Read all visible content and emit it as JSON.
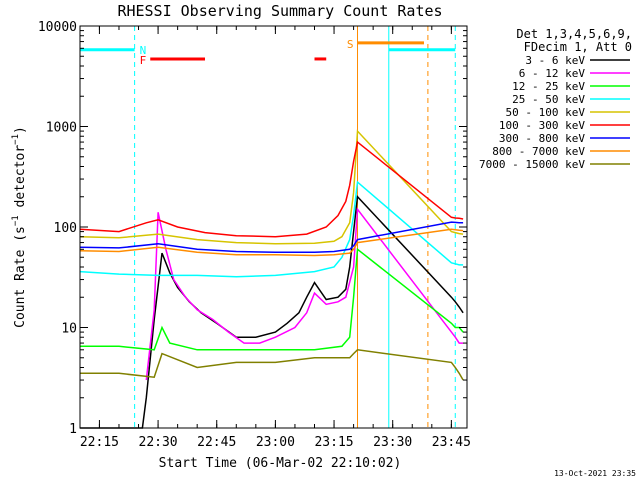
{
  "chart_data": {
    "type": "line",
    "title": "RHESSI Observing Summary Count Rates",
    "xlabel": "Start Time (06-Mar-02 22:10:02)",
    "ylabel": "Count Rate (s⁻¹ detector⁻¹)",
    "ylabel_parts": [
      "Count Rate (s",
      "−1",
      " detector",
      "−1",
      ")"
    ],
    "y_scale": "log",
    "ylim": [
      1,
      10000
    ],
    "y_ticks": [
      {
        "value": 1,
        "label": "1"
      },
      {
        "value": 10,
        "label": "10"
      },
      {
        "value": 100,
        "label": "100"
      },
      {
        "value": 1000,
        "label": "1000"
      },
      {
        "value": 10000,
        "label": "10000"
      }
    ],
    "xlim": [
      "22:10:02",
      "23:49:00"
    ],
    "x_ticks": [
      "22:15",
      "22:30",
      "22:45",
      "23:00",
      "23:15",
      "23:30",
      "23:45"
    ],
    "legend_placement": "right",
    "legend_header": [
      "Det 1,3,4,5,6,9,",
      "FDecim 1, Att 0"
    ],
    "series": [
      {
        "name": "3 - 6 keV",
        "color": "#000000",
        "x": [
          "22:10",
          "22:25",
          "22:26",
          "22:27",
          "22:29",
          "22:31",
          "22:33",
          "22:35",
          "22:38",
          "22:41",
          "22:45",
          "22:50",
          "22:55",
          "23:00",
          "23:03",
          "23:06",
          "23:08",
          "23:10",
          "23:13",
          "23:16",
          "23:18",
          "23:19",
          "23:20",
          "23:21",
          "23:45",
          "23:46",
          "23:47",
          "23:48"
        ],
        "values": [
          1,
          1,
          1,
          2,
          12,
          55,
          35,
          25,
          18,
          14,
          11,
          8,
          8,
          9,
          11,
          14,
          20,
          28,
          19,
          20,
          24,
          40,
          90,
          200,
          20,
          18,
          16,
          14
        ]
      },
      {
        "name": "6 - 12 keV",
        "color": "#ff00ff",
        "x": [
          "22:27",
          "22:29",
          "22:30",
          "22:32",
          "22:34",
          "22:37",
          "22:40",
          "22:44",
          "22:48",
          "22:52",
          "22:56",
          "23:00",
          "23:05",
          "23:08",
          "23:10",
          "23:13",
          "23:16",
          "23:18",
          "23:20",
          "23:21",
          "23:45",
          "23:46",
          "23:47",
          "23:48"
        ],
        "values": [
          3,
          15,
          140,
          60,
          30,
          20,
          15,
          12,
          9,
          7,
          7,
          8,
          10,
          14,
          22,
          17,
          18,
          20,
          40,
          150,
          9,
          8,
          7,
          7
        ]
      },
      {
        "name": "12 - 25 keV",
        "color": "#00ff00",
        "x": [
          "22:10",
          "22:20",
          "22:29",
          "22:31",
          "22:33",
          "22:40",
          "22:50",
          "23:00",
          "23:10",
          "23:17",
          "23:19",
          "23:20",
          "23:21",
          "23:45",
          "23:46",
          "23:47",
          "23:48"
        ],
        "values": [
          6.5,
          6.5,
          6,
          10,
          7,
          6,
          6,
          6,
          6,
          6.5,
          8,
          20,
          60,
          11,
          10,
          10,
          9
        ]
      },
      {
        "name": "25 - 50 keV",
        "color": "#00ffff",
        "x": [
          "22:10",
          "22:20",
          "22:30",
          "22:40",
          "22:50",
          "23:00",
          "23:10",
          "23:15",
          "23:17",
          "23:19",
          "23:20",
          "23:21",
          "23:45",
          "23:46",
          "23:47",
          "23:48"
        ],
        "values": [
          36,
          34,
          33,
          33,
          32,
          33,
          36,
          40,
          50,
          75,
          130,
          280,
          44,
          43,
          42,
          42
        ]
      },
      {
        "name": "50 - 100 keV",
        "color": "#d6c400",
        "x": [
          "22:10",
          "22:20",
          "22:30",
          "22:40",
          "22:50",
          "23:00",
          "23:10",
          "23:15",
          "23:17",
          "23:19",
          "23:20",
          "23:21",
          "23:45",
          "23:46",
          "23:47",
          "23:48"
        ],
        "values": [
          80,
          78,
          85,
          75,
          70,
          68,
          69,
          72,
          80,
          110,
          220,
          900,
          90,
          88,
          86,
          85
        ]
      },
      {
        "name": "100 - 300 keV",
        "color": "#ff0000",
        "x": [
          "22:10",
          "22:20",
          "22:27",
          "22:30",
          "22:35",
          "22:42",
          "22:50",
          "23:00",
          "23:08",
          "23:13",
          "23:16",
          "23:18",
          "23:19",
          "23:20",
          "23:21",
          "23:45",
          "23:46",
          "23:47",
          "23:48"
        ],
        "values": [
          95,
          90,
          110,
          118,
          100,
          88,
          82,
          80,
          85,
          100,
          130,
          180,
          260,
          450,
          700,
          125,
          123,
          122,
          120
        ]
      },
      {
        "name": "300 - 800 keV",
        "color": "#0000ff",
        "x": [
          "22:10",
          "22:20",
          "22:30",
          "22:40",
          "22:50",
          "23:00",
          "23:10",
          "23:15",
          "23:19",
          "23:20",
          "23:21",
          "23:45",
          "23:46",
          "23:47",
          "23:48"
        ],
        "values": [
          63,
          62,
          68,
          60,
          57,
          56,
          56,
          57,
          60,
          65,
          75,
          112,
          111,
          110,
          110
        ]
      },
      {
        "name": "800 - 7000 keV",
        "color": "#ff8c00",
        "x": [
          "22:10",
          "22:20",
          "22:30",
          "22:40",
          "22:50",
          "23:00",
          "23:10",
          "23:15",
          "23:19",
          "23:20",
          "23:21",
          "23:45",
          "23:46",
          "23:47",
          "23:48"
        ],
        "values": [
          58,
          57,
          63,
          56,
          53,
          53,
          52,
          53,
          55,
          60,
          70,
          95,
          94,
          93,
          92
        ]
      },
      {
        "name": "7000 - 15000 keV",
        "color": "#808000",
        "x": [
          "22:10",
          "22:20",
          "22:29",
          "22:31",
          "22:40",
          "22:50",
          "23:00",
          "23:10",
          "23:19",
          "23:20",
          "23:21",
          "23:45",
          "23:46",
          "23:47",
          "23:48"
        ],
        "values": [
          3.5,
          3.5,
          3.2,
          5.5,
          4,
          4.5,
          4.5,
          5,
          5,
          5.5,
          6,
          4.5,
          4,
          3.5,
          3
        ]
      }
    ],
    "annotations": [
      {
        "label": "N",
        "color": "#00ffff"
      },
      {
        "label": "F",
        "color": "#ff0000"
      },
      {
        "label": "S",
        "color": "#ff8c00"
      }
    ],
    "cyan_segments": [
      {
        "x": [
          "22:10:02",
          "22:24"
        ],
        "y": 5800
      },
      {
        "x": [
          "23:29",
          "23:46"
        ],
        "y": 5800
      }
    ],
    "red_segments": [
      {
        "x": [
          "22:28",
          "22:42"
        ],
        "y": 4700
      },
      {
        "x": [
          "23:10",
          "23:13"
        ],
        "y": 4700
      }
    ],
    "orange_segments": [
      {
        "x": [
          "23:21",
          "23:38"
        ],
        "y": 6800
      }
    ],
    "vertical_markers": [
      {
        "x": "22:10:02",
        "color": "#00ffff",
        "style": "solid"
      },
      {
        "x": "22:24",
        "color": "#00ffff",
        "style": "dashed"
      },
      {
        "x": "23:21",
        "color": "#ff8c00",
        "style": "solid"
      },
      {
        "x": "23:29",
        "color": "#00ffff",
        "style": "solid"
      },
      {
        "x": "23:39",
        "color": "#ff8c00",
        "style": "dashed"
      },
      {
        "x": "23:46",
        "color": "#00ffff",
        "style": "dashed"
      }
    ],
    "footer_timestamp": "13-Oct-2021 23:35"
  }
}
